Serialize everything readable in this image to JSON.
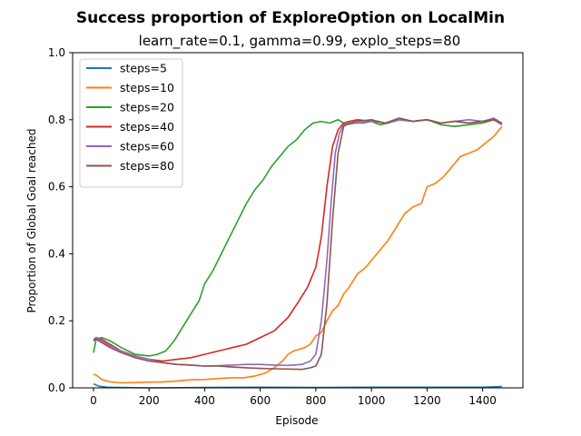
{
  "chart_data": {
    "type": "line",
    "title": "Success proportion of ExploreOption on LocalMin",
    "subtitle": "learn_rate=0.1, gamma=0.99, explo_steps=80",
    "xlabel": "Episode",
    "ylabel": "Proportion of Global Goal reached",
    "xlim": [
      -75,
      1545
    ],
    "ylim": [
      0,
      1.0
    ],
    "xticks": [
      0,
      200,
      400,
      600,
      800,
      1000,
      1200,
      1400
    ],
    "yticks": [
      0.0,
      0.2,
      0.4,
      0.6,
      0.8,
      1.0
    ],
    "grid": false,
    "legend_position": "top-left",
    "series": [
      {
        "name": "steps=5",
        "color": "#1f77b4",
        "x": [
          0,
          20,
          50,
          100,
          200,
          400,
          600,
          800,
          1000,
          1200,
          1400,
          1470
        ],
        "y": [
          0.012,
          0.005,
          0.002,
          0.001,
          0.0,
          0.001,
          0.002,
          0.001,
          0.002,
          0.002,
          0.002,
          0.004
        ]
      },
      {
        "name": "steps=10",
        "color": "#ff7f0e",
        "x": [
          0,
          10,
          30,
          60,
          100,
          150,
          200,
          250,
          300,
          350,
          400,
          450,
          500,
          540,
          580,
          620,
          650,
          680,
          700,
          720,
          740,
          760,
          780,
          800,
          820,
          840,
          860,
          880,
          900,
          920,
          950,
          980,
          1000,
          1030,
          1060,
          1090,
          1120,
          1150,
          1180,
          1200,
          1230,
          1260,
          1290,
          1320,
          1350,
          1380,
          1410,
          1440,
          1460,
          1470
        ],
        "y": [
          0.04,
          0.038,
          0.025,
          0.018,
          0.015,
          0.016,
          0.017,
          0.018,
          0.02,
          0.024,
          0.025,
          0.028,
          0.03,
          0.03,
          0.035,
          0.045,
          0.06,
          0.08,
          0.1,
          0.11,
          0.115,
          0.12,
          0.13,
          0.155,
          0.165,
          0.2,
          0.23,
          0.245,
          0.28,
          0.3,
          0.34,
          0.36,
          0.38,
          0.41,
          0.44,
          0.48,
          0.52,
          0.54,
          0.55,
          0.6,
          0.61,
          0.63,
          0.66,
          0.69,
          0.7,
          0.71,
          0.73,
          0.75,
          0.77,
          0.78
        ]
      },
      {
        "name": "steps=20",
        "color": "#2ca02c",
        "x": [
          0,
          10,
          30,
          60,
          100,
          150,
          200,
          230,
          260,
          290,
          320,
          350,
          380,
          400,
          430,
          460,
          490,
          520,
          550,
          580,
          610,
          640,
          670,
          700,
          730,
          760,
          790,
          820,
          850,
          880,
          910,
          940,
          970,
          1000,
          1030,
          1060,
          1100,
          1150,
          1200,
          1250,
          1300,
          1350,
          1400,
          1440,
          1470
        ],
        "y": [
          0.105,
          0.145,
          0.15,
          0.14,
          0.12,
          0.1,
          0.095,
          0.1,
          0.11,
          0.14,
          0.18,
          0.22,
          0.26,
          0.31,
          0.35,
          0.4,
          0.45,
          0.5,
          0.55,
          0.59,
          0.62,
          0.66,
          0.69,
          0.72,
          0.74,
          0.77,
          0.79,
          0.795,
          0.79,
          0.8,
          0.785,
          0.79,
          0.79,
          0.795,
          0.785,
          0.79,
          0.8,
          0.795,
          0.8,
          0.785,
          0.78,
          0.785,
          0.79,
          0.8,
          0.79
        ]
      },
      {
        "name": "steps=40",
        "color": "#d62728",
        "x": [
          0,
          10,
          30,
          60,
          100,
          150,
          200,
          250,
          300,
          350,
          400,
          450,
          500,
          550,
          600,
          650,
          700,
          740,
          770,
          800,
          820,
          840,
          860,
          880,
          900,
          920,
          950,
          1000,
          1050,
          1100,
          1150,
          1200,
          1250,
          1300,
          1350,
          1400,
          1440,
          1470
        ],
        "y": [
          0.14,
          0.15,
          0.145,
          0.13,
          0.11,
          0.095,
          0.085,
          0.08,
          0.085,
          0.09,
          0.1,
          0.11,
          0.12,
          0.13,
          0.15,
          0.17,
          0.21,
          0.26,
          0.3,
          0.36,
          0.45,
          0.6,
          0.72,
          0.77,
          0.79,
          0.795,
          0.8,
          0.795,
          0.79,
          0.8,
          0.795,
          0.8,
          0.79,
          0.795,
          0.79,
          0.795,
          0.8,
          0.79
        ]
      },
      {
        "name": "steps=60",
        "color": "#9467bd",
        "x": [
          0,
          10,
          30,
          60,
          100,
          150,
          200,
          250,
          300,
          350,
          400,
          450,
          500,
          550,
          600,
          650,
          700,
          750,
          780,
          800,
          820,
          840,
          855,
          870,
          885,
          900,
          920,
          950,
          1000,
          1050,
          1100,
          1150,
          1200,
          1250,
          1300,
          1350,
          1400,
          1440,
          1470
        ],
        "y": [
          0.145,
          0.15,
          0.14,
          0.125,
          0.11,
          0.095,
          0.085,
          0.075,
          0.07,
          0.068,
          0.065,
          0.066,
          0.068,
          0.07,
          0.07,
          0.068,
          0.067,
          0.07,
          0.08,
          0.1,
          0.2,
          0.38,
          0.55,
          0.7,
          0.76,
          0.785,
          0.79,
          0.79,
          0.795,
          0.79,
          0.8,
          0.795,
          0.8,
          0.79,
          0.795,
          0.8,
          0.795,
          0.805,
          0.79
        ]
      },
      {
        "name": "steps=80",
        "color": "#8c564b",
        "x": [
          0,
          10,
          30,
          60,
          100,
          150,
          200,
          250,
          300,
          350,
          400,
          450,
          500,
          550,
          600,
          650,
          700,
          750,
          780,
          800,
          820,
          840,
          860,
          880,
          900,
          920,
          950,
          1000,
          1050,
          1100,
          1150,
          1200,
          1250,
          1300,
          1350,
          1400,
          1440,
          1470
        ],
        "y": [
          0.14,
          0.145,
          0.135,
          0.12,
          0.105,
          0.09,
          0.08,
          0.075,
          0.07,
          0.068,
          0.065,
          0.065,
          0.062,
          0.06,
          0.058,
          0.057,
          0.056,
          0.055,
          0.06,
          0.065,
          0.1,
          0.25,
          0.5,
          0.7,
          0.78,
          0.79,
          0.795,
          0.8,
          0.79,
          0.805,
          0.795,
          0.8,
          0.79,
          0.795,
          0.79,
          0.795,
          0.8,
          0.785
        ]
      }
    ]
  }
}
